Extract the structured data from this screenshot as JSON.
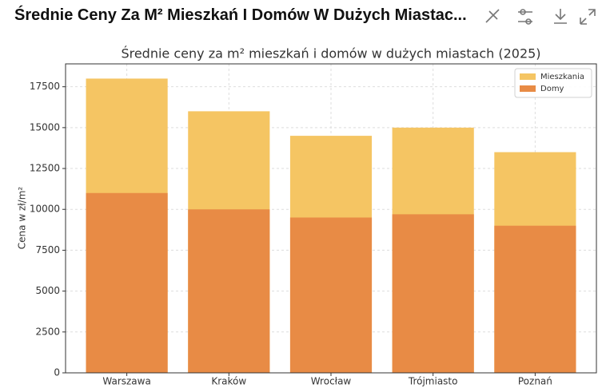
{
  "header": {
    "title": "Średnie Ceny Za M² Mieszkań I Domów W Dużych Miastac..."
  },
  "chart_data": {
    "type": "bar",
    "title": "Średnie ceny za m² mieszkań i domów w dużych miastach (2025)",
    "ylabel": "Cena w zł/m²",
    "categories": [
      "Warszawa",
      "Kraków",
      "Wrocław",
      "Trójmiasto",
      "Poznań"
    ],
    "series": [
      {
        "name": "Mieszkania",
        "color": "#f5c563",
        "values": [
          18000,
          16000,
          14500,
          15000,
          13500
        ]
      },
      {
        "name": "Domy",
        "color": "#e88b45",
        "values": [
          11000,
          10000,
          9500,
          9700,
          9000
        ]
      }
    ],
    "ylim": [
      0,
      18900
    ],
    "yticks": [
      0,
      2500,
      5000,
      7500,
      10000,
      12500,
      15000,
      17500
    ],
    "grid": true,
    "legend": "upper right"
  }
}
